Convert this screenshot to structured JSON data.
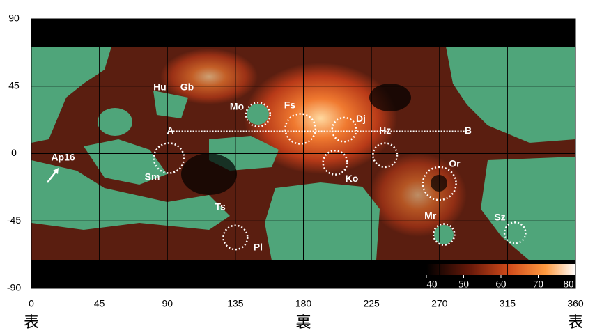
{
  "chart_data": {
    "type": "map",
    "xlim": [
      0,
      360
    ],
    "ylim": [
      -90,
      90
    ],
    "xticks": [
      0,
      45,
      90,
      135,
      180,
      225,
      270,
      315,
      360
    ],
    "yticks": [
      -90,
      -45,
      0,
      45,
      90
    ],
    "grid": true,
    "side_labels": [
      {
        "lon": 0,
        "text": "表"
      },
      {
        "lon": 180,
        "text": "裏"
      },
      {
        "lon": 360,
        "text": "表"
      }
    ],
    "labels": [
      {
        "text": "Hu",
        "lon": 85,
        "lat": 44
      },
      {
        "text": "Gb",
        "lon": 103,
        "lat": 44
      },
      {
        "text": "Mo",
        "lon": 136,
        "lat": 31
      },
      {
        "text": "Fs",
        "lon": 171,
        "lat": 32
      },
      {
        "text": "Dj",
        "lon": 218,
        "lat": 23
      },
      {
        "text": "Hz",
        "lon": 234,
        "lat": 15
      },
      {
        "text": "A",
        "lon": 92,
        "lat": 15
      },
      {
        "text": "B",
        "lon": 289,
        "lat": 15
      },
      {
        "text": "Ap16",
        "lon": 21,
        "lat": -3
      },
      {
        "text": "Sm",
        "lon": 80,
        "lat": -16
      },
      {
        "text": "Ko",
        "lon": 212,
        "lat": -17
      },
      {
        "text": "Or",
        "lon": 280,
        "lat": -7
      },
      {
        "text": "Ts",
        "lon": 125,
        "lat": -36
      },
      {
        "text": "Mr",
        "lon": 264,
        "lat": -42
      },
      {
        "text": "Sz",
        "lon": 310,
        "lat": -43
      },
      {
        "text": "Pl",
        "lon": 150,
        "lat": -63
      }
    ],
    "circles": [
      {
        "lon": 150,
        "lat": 26,
        "r": 8
      },
      {
        "lon": 178,
        "lat": 16.5,
        "r": 10
      },
      {
        "lon": 207,
        "lat": 16,
        "r": 8
      },
      {
        "lon": 234,
        "lat": -1,
        "r": 8
      },
      {
        "lon": 91,
        "lat": -3,
        "r": 10
      },
      {
        "lon": 201,
        "lat": -6,
        "r": 8
      },
      {
        "lon": 270,
        "lat": -20,
        "r": 11
      },
      {
        "lon": 273,
        "lat": -54,
        "r": 7
      },
      {
        "lon": 320,
        "lat": -53,
        "r": 7
      },
      {
        "lon": 135,
        "lat": -56,
        "r": 8
      }
    ],
    "profile": {
      "lon": [
        92,
        289
      ],
      "lat": 15
    },
    "colorbar": {
      "lim": [
        40,
        80
      ],
      "ticks": [
        40,
        50,
        60,
        70,
        80
      ]
    }
  }
}
